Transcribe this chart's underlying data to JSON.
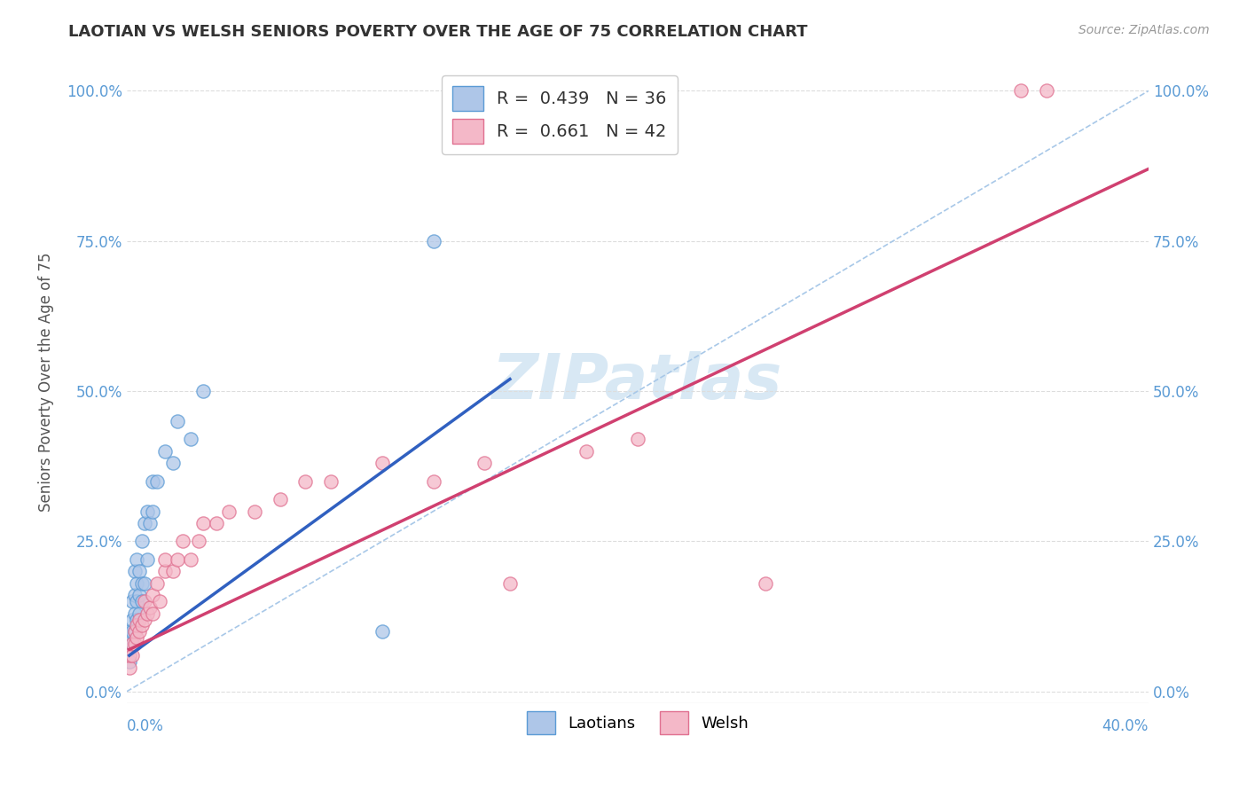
{
  "title": "LAOTIAN VS WELSH SENIORS POVERTY OVER THE AGE OF 75 CORRELATION CHART",
  "source": "Source: ZipAtlas.com",
  "ylabel": "Seniors Poverty Over the Age of 75",
  "xlim": [
    0.0,
    0.4
  ],
  "ylim": [
    -0.02,
    1.05
  ],
  "yticks": [
    0.0,
    0.25,
    0.5,
    0.75,
    1.0
  ],
  "ytick_labels": [
    "0.0%",
    "25.0%",
    "50.0%",
    "75.0%",
    "100.0%"
  ],
  "tick_color": "#5b9bd5",
  "laotian_color": "#aec6e8",
  "laotian_edge": "#5b9bd5",
  "welsh_color": "#f4b8c8",
  "welsh_edge": "#e07090",
  "laotian_R": 0.439,
  "laotian_N": 36,
  "welsh_R": 0.661,
  "welsh_N": 42,
  "laotian_line_color": "#3060c0",
  "welsh_line_color": "#d04070",
  "ref_line_color": "#a8c8e8",
  "background_color": "#ffffff",
  "legend_label_laotian": "Laotians",
  "legend_label_welsh": "Welsh",
  "watermark_color": "#c8dff0",
  "laotian_x": [
    0.001,
    0.001,
    0.001,
    0.002,
    0.002,
    0.002,
    0.002,
    0.003,
    0.003,
    0.003,
    0.003,
    0.004,
    0.004,
    0.004,
    0.004,
    0.005,
    0.005,
    0.005,
    0.006,
    0.006,
    0.006,
    0.007,
    0.007,
    0.008,
    0.008,
    0.009,
    0.01,
    0.01,
    0.012,
    0.015,
    0.018,
    0.02,
    0.025,
    0.03,
    0.1,
    0.12
  ],
  "laotian_y": [
    0.05,
    0.07,
    0.1,
    0.08,
    0.1,
    0.12,
    0.15,
    0.1,
    0.13,
    0.16,
    0.2,
    0.12,
    0.15,
    0.18,
    0.22,
    0.13,
    0.16,
    0.2,
    0.15,
    0.18,
    0.25,
    0.18,
    0.28,
    0.22,
    0.3,
    0.28,
    0.3,
    0.35,
    0.35,
    0.4,
    0.38,
    0.45,
    0.42,
    0.5,
    0.1,
    0.75
  ],
  "welsh_x": [
    0.001,
    0.001,
    0.002,
    0.002,
    0.003,
    0.003,
    0.004,
    0.004,
    0.005,
    0.005,
    0.006,
    0.007,
    0.007,
    0.008,
    0.009,
    0.01,
    0.01,
    0.012,
    0.013,
    0.015,
    0.015,
    0.018,
    0.02,
    0.022,
    0.025,
    0.028,
    0.03,
    0.035,
    0.04,
    0.05,
    0.06,
    0.07,
    0.08,
    0.1,
    0.12,
    0.14,
    0.15,
    0.18,
    0.2,
    0.25,
    0.35,
    0.36
  ],
  "welsh_y": [
    0.04,
    0.06,
    0.06,
    0.08,
    0.08,
    0.1,
    0.09,
    0.11,
    0.1,
    0.12,
    0.11,
    0.12,
    0.15,
    0.13,
    0.14,
    0.13,
    0.16,
    0.18,
    0.15,
    0.2,
    0.22,
    0.2,
    0.22,
    0.25,
    0.22,
    0.25,
    0.28,
    0.28,
    0.3,
    0.3,
    0.32,
    0.35,
    0.35,
    0.38,
    0.35,
    0.38,
    0.18,
    0.4,
    0.42,
    0.18,
    1.0,
    1.0
  ],
  "laotian_line_x": [
    0.001,
    0.15
  ],
  "laotian_line_y": [
    0.06,
    0.52
  ],
  "welsh_line_x": [
    0.001,
    0.4
  ],
  "welsh_line_y": [
    0.07,
    0.87
  ]
}
